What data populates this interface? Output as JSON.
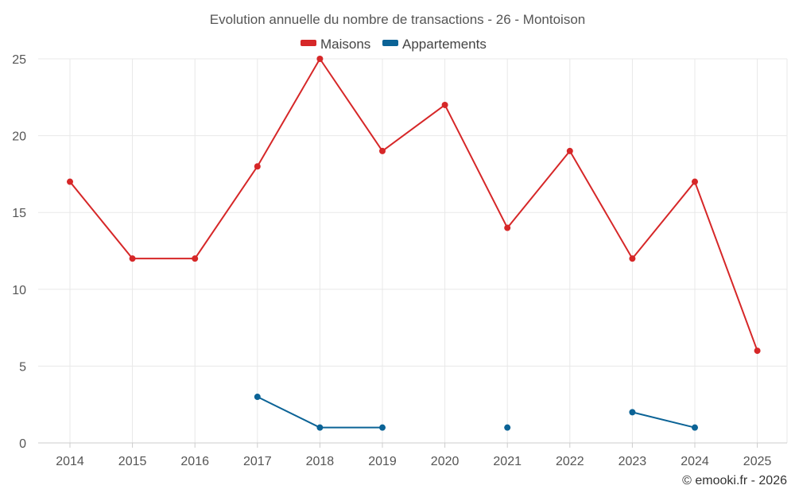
{
  "chart_data": {
    "type": "line",
    "title": "Evolution annuelle du nombre de transactions - 26 - Montoison",
    "categories": [
      "2014",
      "2015",
      "2016",
      "2017",
      "2018",
      "2019",
      "2020",
      "2021",
      "2022",
      "2023",
      "2024",
      "2025"
    ],
    "series": [
      {
        "name": "Maisons",
        "color": "#d62728",
        "values": [
          17,
          12,
          12,
          18,
          25,
          19,
          22,
          14,
          19,
          12,
          17,
          6
        ]
      },
      {
        "name": "Appartements",
        "color": "#0b6396",
        "values": [
          null,
          null,
          null,
          3,
          1,
          1,
          null,
          1,
          null,
          2,
          1,
          null
        ]
      }
    ],
    "ylim": [
      0,
      25
    ],
    "yticks": [
      "0",
      "5",
      "10",
      "15",
      "20",
      "25"
    ],
    "grid": true,
    "legend": "top-center",
    "xlabel": "",
    "ylabel": ""
  },
  "credit": "© emooki.fr - 2026"
}
